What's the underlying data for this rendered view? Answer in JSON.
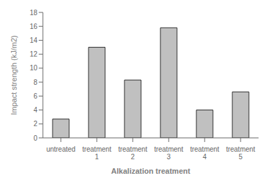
{
  "chart_data": {
    "type": "bar",
    "categories": [
      "untreated",
      "treatment\n1",
      "treatment\n2",
      "treatment\n3",
      "treatment\n4",
      "treatment\n5"
    ],
    "values": [
      2.7,
      13.0,
      8.3,
      15.8,
      4.0,
      6.6
    ],
    "color": "#c0c0c0",
    "xlabel": "Alkalization treatment",
    "ylabel": "Impact strength (kJ/m2)",
    "ylim": [
      0,
      18
    ],
    "yticks": [
      0,
      2,
      4,
      6,
      8,
      10,
      12,
      14,
      16,
      18
    ],
    "grid": false
  }
}
